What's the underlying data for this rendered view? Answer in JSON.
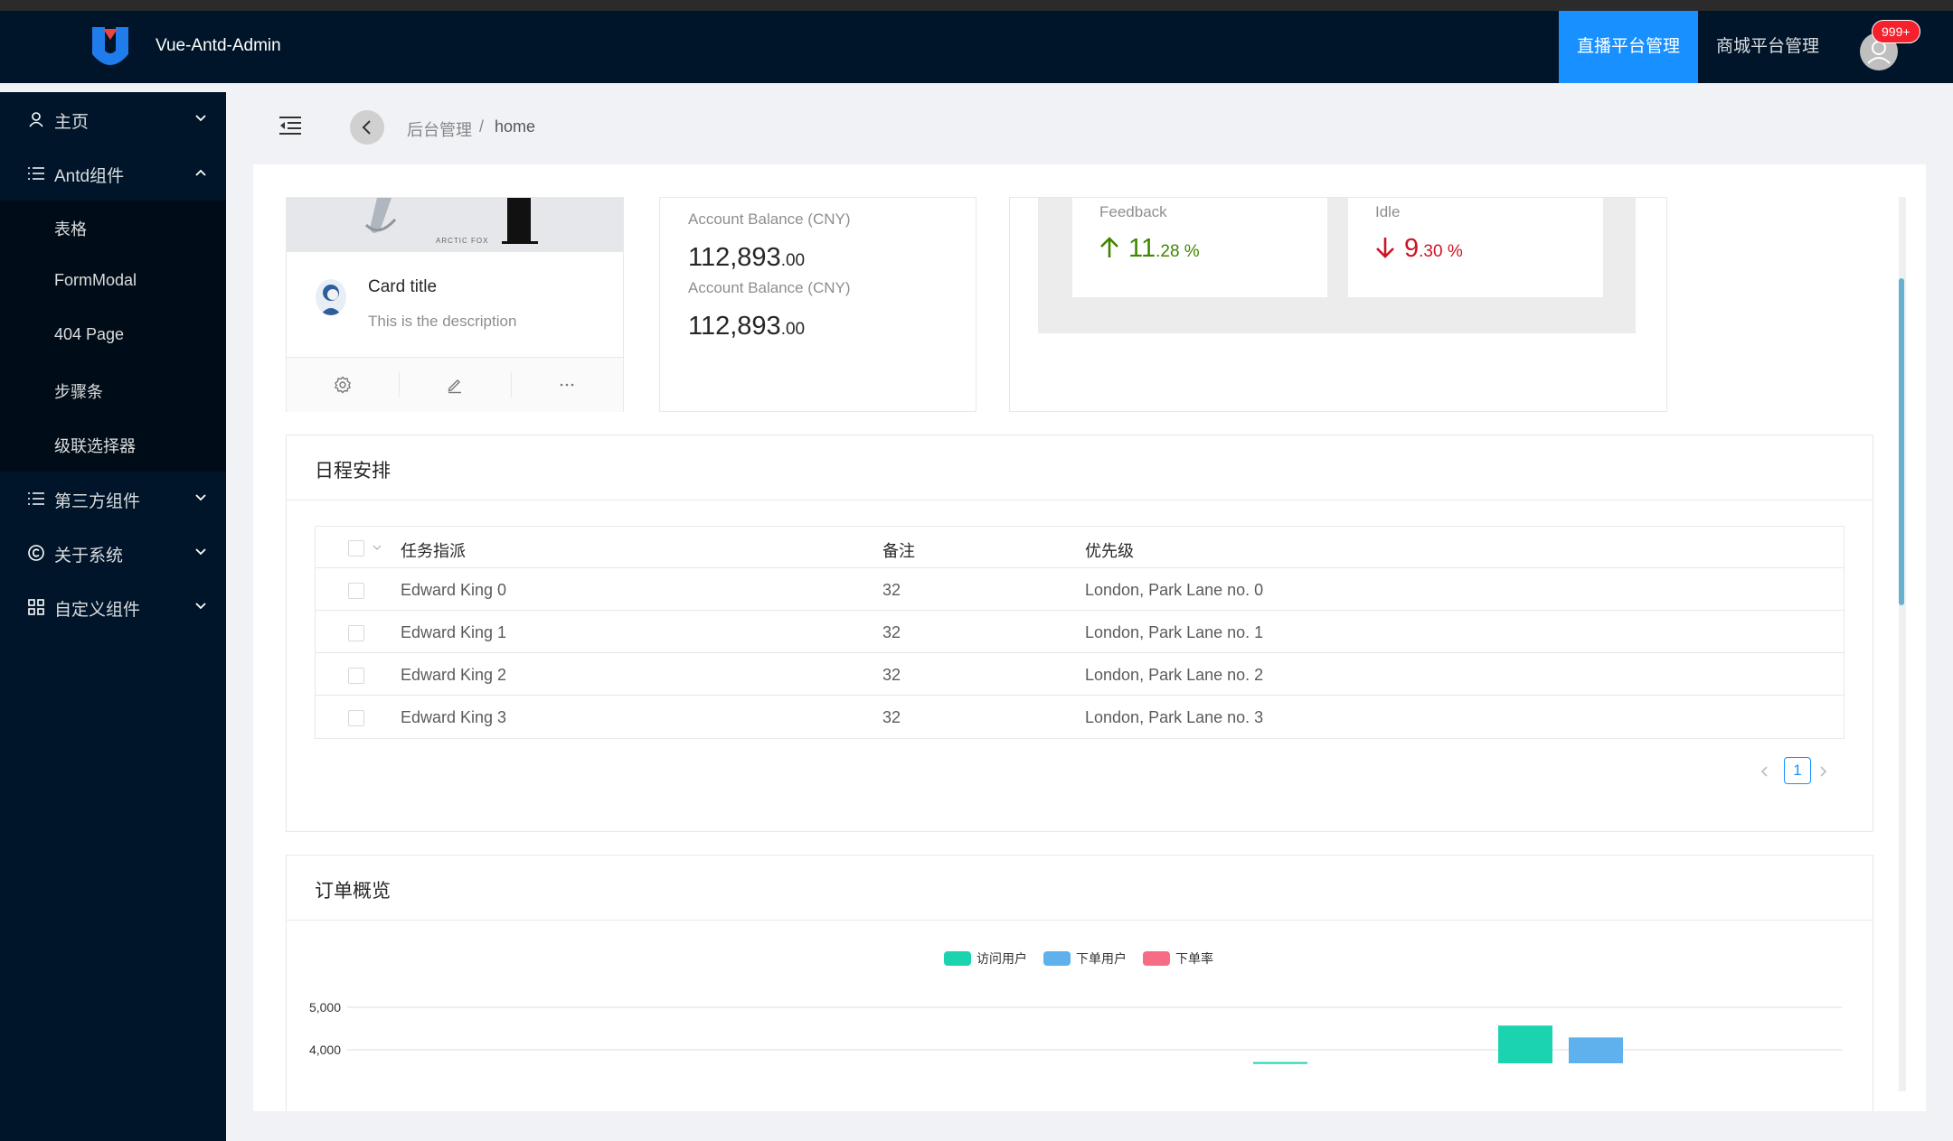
{
  "header": {
    "app_title": "Vue-Antd-Admin",
    "tabs": [
      {
        "label": "直播平台管理",
        "active": true
      },
      {
        "label": "商城平台管理",
        "active": false
      }
    ],
    "notification_count": "999+"
  },
  "sidebar": {
    "items": [
      {
        "label": "主页",
        "icon": "user-icon",
        "expanded": false
      },
      {
        "label": "Antd组件",
        "icon": "list-icon",
        "expanded": true
      },
      {
        "label": "第三方组件",
        "icon": "list-icon",
        "expanded": false
      },
      {
        "label": "关于系统",
        "icon": "copyright-icon",
        "expanded": false
      },
      {
        "label": "自定义组件",
        "icon": "grid-icon",
        "expanded": false
      }
    ],
    "subitems": [
      "表格",
      "FormModal",
      "404 Page",
      "步骤条",
      "级联选择器"
    ]
  },
  "breadcrumb": {
    "items": [
      "后台管理",
      "home"
    ],
    "separator": "/"
  },
  "card": {
    "cover_text": "ARCTIC FOX",
    "title": "Card title",
    "description": "This is the description"
  },
  "balance": {
    "items": [
      {
        "label": "Account Balance (CNY)",
        "value": "112,893",
        "decimals": ".00"
      },
      {
        "label": "Account Balance (CNY)",
        "value": "112,893",
        "decimals": ".00"
      }
    ]
  },
  "stats": [
    {
      "label": "Feedback",
      "value": "11",
      "decimals": ".28 %",
      "trend": "up",
      "color": "#3f8600"
    },
    {
      "label": "Idle",
      "value": "9",
      "decimals": ".30 %",
      "trend": "down",
      "color": "#cf1322"
    }
  ],
  "schedule": {
    "title": "日程安排",
    "columns": [
      "任务指派",
      "备注",
      "优先级"
    ],
    "rows": [
      {
        "name": "Edward King 0",
        "age": "32",
        "address": "London, Park Lane no. 0"
      },
      {
        "name": "Edward King 1",
        "age": "32",
        "address": "London, Park Lane no. 1"
      },
      {
        "name": "Edward King 2",
        "age": "32",
        "address": "London, Park Lane no. 2"
      },
      {
        "name": "Edward King 3",
        "age": "32",
        "address": "London, Park Lane no. 3"
      }
    ],
    "current_page": "1"
  },
  "orders": {
    "title": "订单概览"
  },
  "chart_data": {
    "type": "bar",
    "legend": [
      {
        "name": "访问用户",
        "color": "#1cd3b0"
      },
      {
        "name": "下单用户",
        "color": "#5eb1ec"
      },
      {
        "name": "下单率",
        "color": "#f56c84"
      }
    ],
    "legend_position": "top-center",
    "y_ticks": [
      "5,000",
      "4,000"
    ],
    "ylim_visible": [
      3700,
      5000
    ],
    "grid": true,
    "visible_bars": [
      {
        "series": "访问用户",
        "group": 5,
        "value": 3710
      },
      {
        "series": "访问用户",
        "group": 6,
        "value": 4570
      },
      {
        "series": "下单用户",
        "group": 6,
        "value": 4290
      }
    ]
  },
  "colors": {
    "primary": "#1890ff",
    "sider": "#001529",
    "submenu": "#000c17"
  }
}
